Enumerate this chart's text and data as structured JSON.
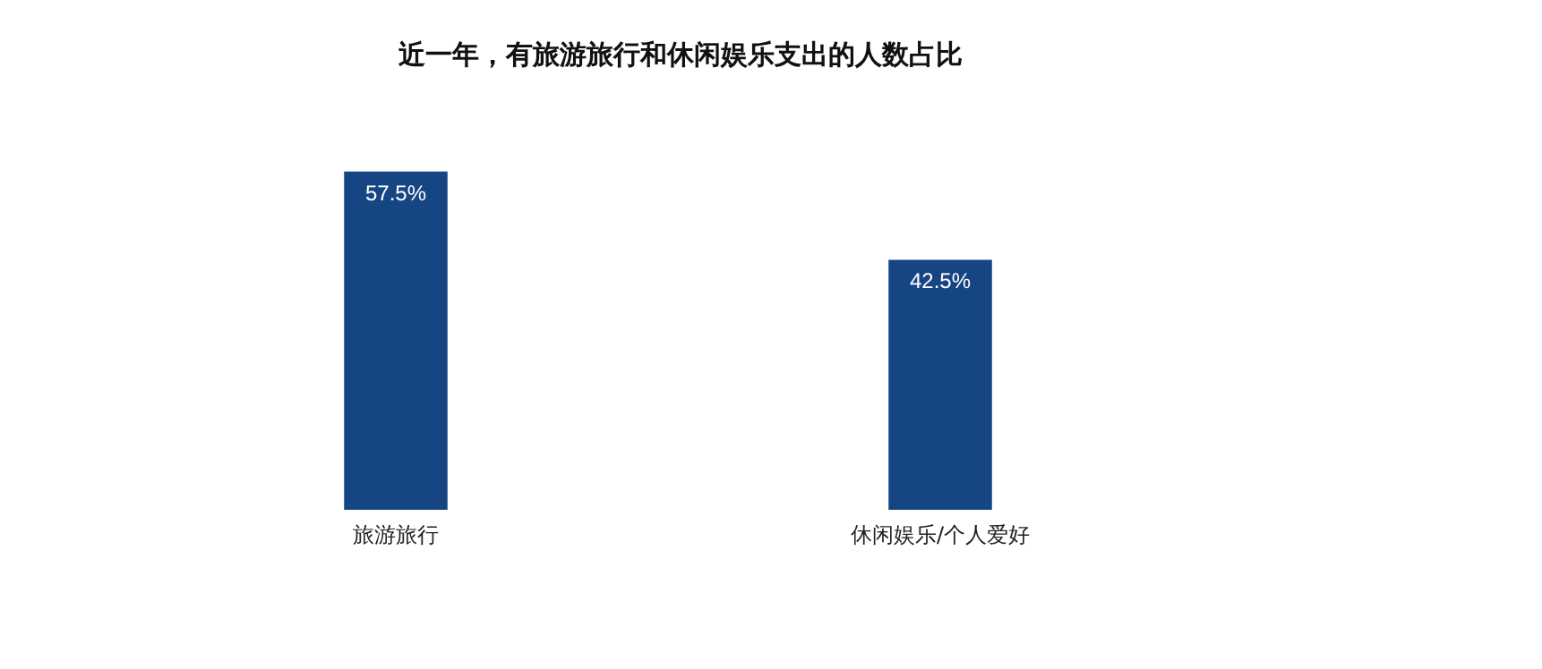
{
  "chart_data": {
    "type": "bar",
    "title": "近一年，有旅游旅行和休闲娱乐支出的人数占比",
    "categories": [
      "旅游旅行",
      "休闲娱乐/个人爱好"
    ],
    "values": [
      57.5,
      42.5
    ],
    "color": "#164584",
    "value_labels": [
      "57.5%",
      "42.5%"
    ]
  }
}
